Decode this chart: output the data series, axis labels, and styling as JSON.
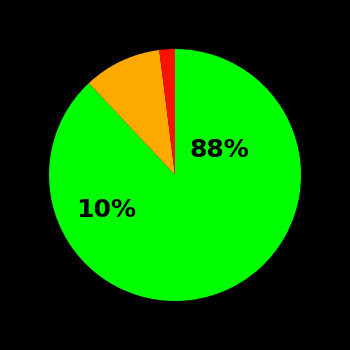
{
  "slices": [
    88,
    10,
    2
  ],
  "colors": [
    "#00ff00",
    "#ffaa00",
    "#ff1100"
  ],
  "labels": [
    "88%",
    "10%",
    ""
  ],
  "background_color": "#000000",
  "label_fontsize": 18,
  "label_color": "#000000",
  "startangle": 90,
  "figsize": [
    3.5,
    3.5
  ],
  "dpi": 100
}
